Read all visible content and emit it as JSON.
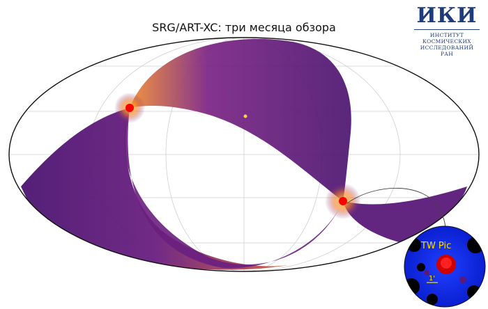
{
  "title": "SRG/ART-XC: три месяца обзора",
  "logo": {
    "mark": "ИКИ",
    "lines": [
      "ИНСТИТУТ",
      "КОСМИЧЕСКИХ",
      "ИССЛЕДОВАНИЙ",
      "РАН"
    ]
  },
  "inset": {
    "source_label": "TW Pic",
    "scale_label": "1'"
  },
  "colors": {
    "exposure_dark": "#5a1a7a",
    "exposure_bright": "#f3882b",
    "pole_marker": "#ff0000",
    "grid": "#cccccc",
    "inset_background": "#1a3cff",
    "label_yellow": "#ffe000"
  }
}
